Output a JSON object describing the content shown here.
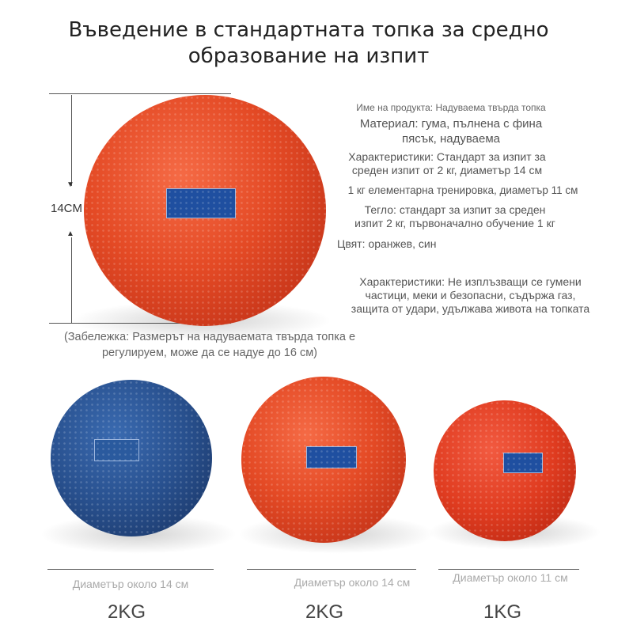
{
  "title": {
    "line1": "Въведение в стандартната топка за средно",
    "line2": "образование на изпит"
  },
  "specs": {
    "name": "Име на продукта: Надуваема твърда топка",
    "material_1": "Материал: гума, пълнена с фина",
    "material_2": "пясък, надуваема",
    "features_1": "Характеристики: Стандарт за изпит за",
    "features_2": "среден изпит от 2 кг, диаметър 14 см",
    "training": "1 кг елементарна тренировка, диаметър 11 см",
    "weight_1": "Тегло: стандарт за изпит за среден",
    "weight_2": "изпит 2 кг, първоначално обучение 1 кг",
    "color": "Цвят: оранжев, син",
    "props_1": "Характеристики: Не изплъзващи се гумени",
    "props_2": "частици, меки и безопасни, съдържа газ,",
    "props_3": "защита от удари, удължава живота на топката"
  },
  "dimension_label": "14CM",
  "note": {
    "line1": "(Забележка: Размерът на надуваемата твърда топка е",
    "line2": "регулируем, може да се надуе до 16 см)"
  },
  "products": [
    {
      "color": "blue",
      "diameter": "Диаметър около 14 см",
      "weight": "2KG"
    },
    {
      "color": "orange",
      "diameter": "Диаметър около 14 см",
      "weight": "2KG"
    },
    {
      "color": "red",
      "diameter": "Диаметър около 11 см",
      "weight": "1KG"
    }
  ],
  "colors": {
    "orange": "#e44a25",
    "blue": "#28508e",
    "label_blue": "#1f4fa0"
  }
}
